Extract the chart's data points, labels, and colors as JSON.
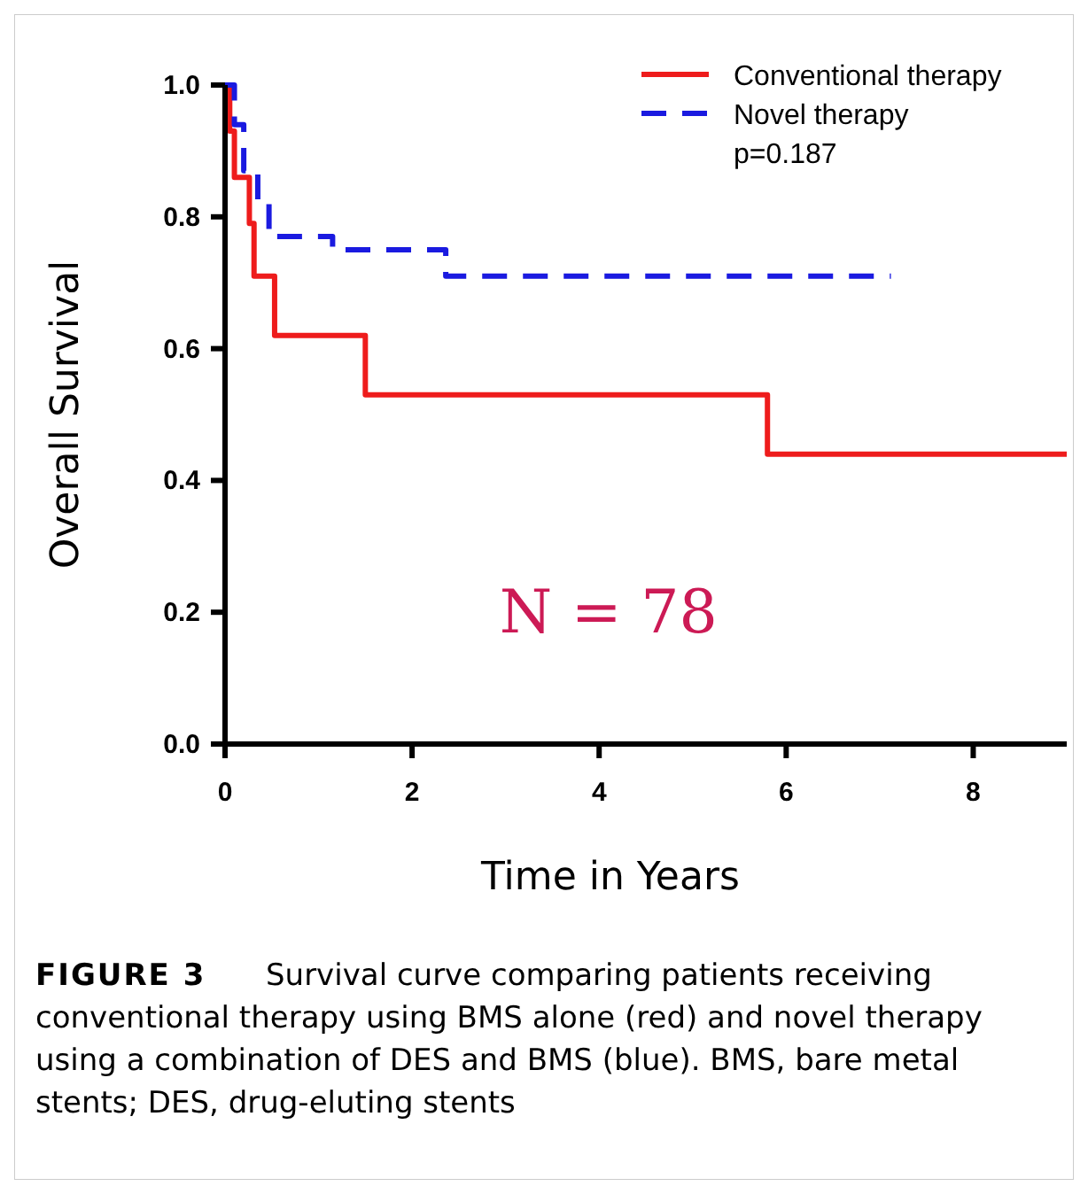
{
  "chart_data": {
    "type": "step",
    "xlabel": "Time in Years",
    "ylabel": "Overall Survival",
    "xlim": [
      0,
      9
    ],
    "xticks": [
      0,
      2,
      4,
      6,
      8
    ],
    "ylim": [
      0,
      1
    ],
    "yticks": [
      {
        "value": 0,
        "label": "0.0"
      },
      0.2,
      0.4,
      0.6,
      0.8,
      {
        "value": 1,
        "label": "1.0"
      }
    ],
    "series": [
      {
        "name": "Conventional therapy",
        "color": "#ee1c1c",
        "line_style": "solid",
        "x": [
          0,
          0.05,
          0.1,
          0.26,
          0.31,
          0.53,
          1.5,
          5.8,
          9
        ],
        "values": [
          1,
          0.93,
          0.86,
          0.79,
          0.71,
          0.62,
          0.53,
          0.44,
          0.44
        ]
      },
      {
        "name": "Novel therapy",
        "color": "#1a1ae0",
        "line_style": "dashed",
        "x": [
          0,
          0.1,
          0.2,
          0.35,
          0.47,
          1.15,
          2.36,
          7.12
        ],
        "values": [
          1,
          0.94,
          0.87,
          0.82,
          0.77,
          0.75,
          0.71,
          0.71
        ]
      }
    ],
    "legend": "top right",
    "grid": false,
    "annotations": [
      "p=0.187",
      "N = 78",
      "FIGURE 3",
      "Survival curve comparing patients receiving conventional therapy using BMS alone (red) and novel therapy using a combination of DES and BMS (blue). BMS, bare metal stents; DES, drug-eluting stents"
    ]
  }
}
